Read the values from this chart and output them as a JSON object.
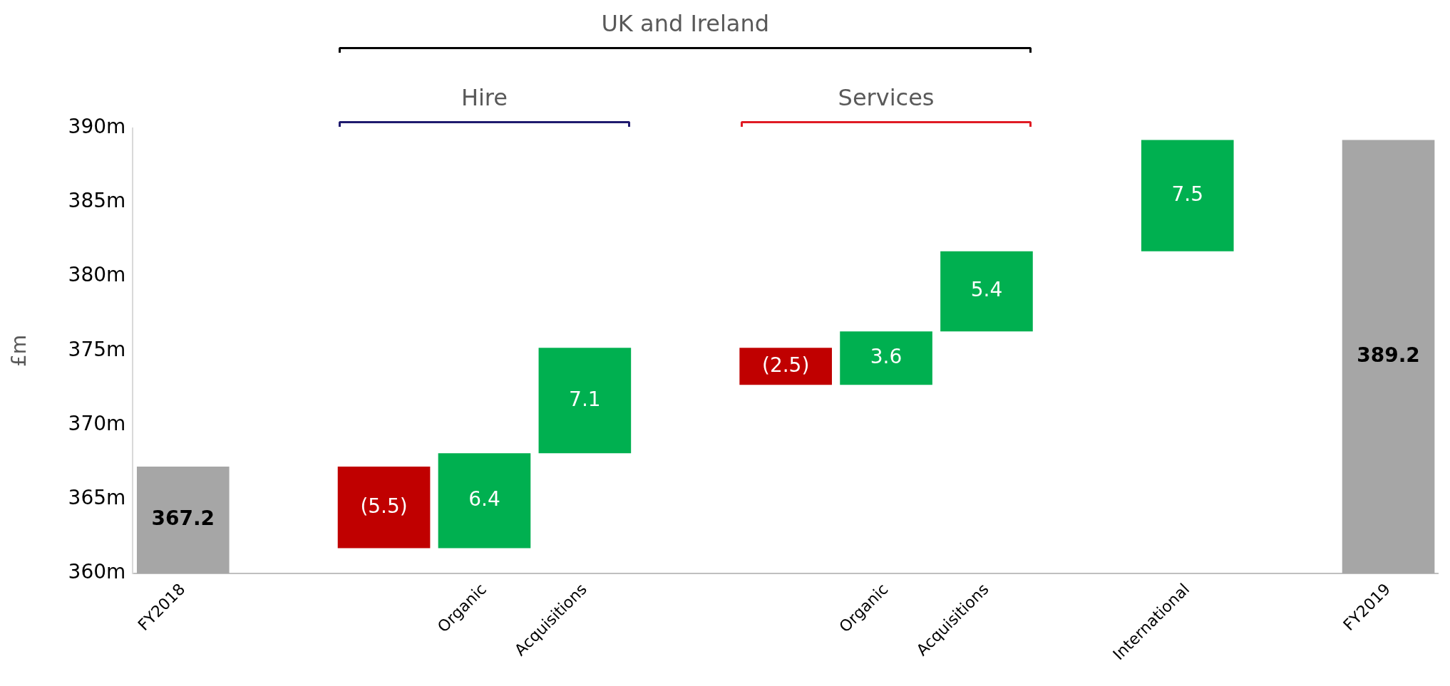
{
  "chart_data": {
    "type": "bar",
    "categories": [
      "FY2018",
      null,
      null,
      "Organic",
      "Acquisitions",
      null,
      null,
      "Organic",
      "Acquisitions",
      null,
      "International",
      null,
      "FY2019"
    ],
    "values": [
      367.2,
      null,
      -5.5,
      6.4,
      7.1,
      null,
      -2.5,
      3.6,
      5.4,
      null,
      7.5,
      null,
      389.2
    ],
    "base": [
      0,
      null,
      367.2,
      361.7,
      368.1,
      null,
      375.2,
      372.7,
      376.3,
      null,
      381.7,
      null,
      0
    ],
    "colors": [
      "#a6a6a6",
      null,
      "#c00000",
      "#00b050",
      "#00b050",
      null,
      "#c00000",
      "#00b050",
      "#00b050",
      null,
      "#00b050",
      null,
      "#a6a6a6"
    ],
    "value_labels": [
      "367.2",
      null,
      "(5.5)",
      "6.4",
      "7.1",
      null,
      "(2.5)",
      "3.6",
      "5.4",
      null,
      "7.5",
      null,
      "389.2"
    ],
    "ylabel": "£m",
    "ylim": [
      360,
      390
    ],
    "yticks": [
      {
        "value": 360,
        "label": "360m"
      },
      {
        "value": 365,
        "label": "365m"
      },
      {
        "value": 370,
        "label": "370m"
      },
      {
        "value": 375,
        "label": "375m"
      },
      {
        "value": 380,
        "label": "380m"
      },
      {
        "value": 385,
        "label": "385m"
      },
      {
        "value": 390,
        "label": "390m"
      }
    ],
    "annotations": [
      "UK and Ireland",
      "Hire",
      "Services"
    ],
    "grid": false,
    "legend": false
  }
}
